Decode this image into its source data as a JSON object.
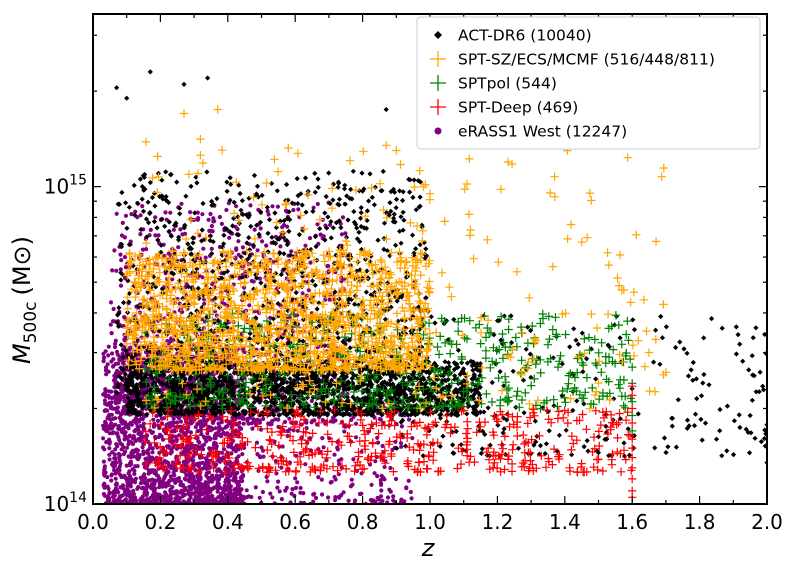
{
  "chart_data": {
    "type": "scatter",
    "xlabel": "z",
    "ylabel_main": "M",
    "ylabel_sub": "500c",
    "ylabel_unit": "(M⊙)",
    "xlim": [
      0.0,
      2.0
    ],
    "ylim": [
      100000000000000.0,
      3500000000000000.0
    ],
    "yscale": "log",
    "legend_position": "top-right",
    "x_ticks": [
      {
        "value": 0.0,
        "label": "0.0"
      },
      {
        "value": 0.2,
        "label": "0.2"
      },
      {
        "value": 0.4,
        "label": "0.4"
      },
      {
        "value": 0.6,
        "label": "0.6"
      },
      {
        "value": 0.8,
        "label": "0.8"
      },
      {
        "value": 1.0,
        "label": "1.0"
      },
      {
        "value": 1.2,
        "label": "1.2"
      },
      {
        "value": 1.4,
        "label": "1.4"
      },
      {
        "value": 1.6,
        "label": "1.6"
      },
      {
        "value": 1.8,
        "label": "1.8"
      },
      {
        "value": 2.0,
        "label": "2.0"
      }
    ],
    "y_ticks": [
      {
        "value": 100000000000000.0,
        "base": "10",
        "exp": "14"
      },
      {
        "value": 1000000000000000.0,
        "base": "10",
        "exp": "15"
      }
    ],
    "series": [
      {
        "name": "eRASS1 West (12247)",
        "marker": "circle",
        "color": "#800080",
        "clusters": [
          {
            "zmin": 0.03,
            "zmax": 0.45,
            "logmmin": 14.0,
            "logmmax": 14.5,
            "n": 1800
          },
          {
            "zmin": 0.05,
            "zmax": 0.75,
            "logmmin": 14.25,
            "logmmax": 14.95,
            "n": 900
          },
          {
            "zmin": 0.3,
            "zmax": 0.95,
            "logmmin": 14.0,
            "logmmax": 14.35,
            "n": 300
          }
        ]
      },
      {
        "name": "ACT-DR6 (10040)",
        "marker": "diamond",
        "color": "#000000",
        "clusters": [
          {
            "zmin": 0.1,
            "zmax": 1.15,
            "logmmin": 14.28,
            "logmmax": 14.45,
            "n": 1600
          },
          {
            "zmin": 0.07,
            "zmax": 1.0,
            "logmmin": 14.35,
            "logmmax": 15.05,
            "n": 1000
          },
          {
            "zmin": 0.9,
            "zmax": 2.0,
            "logmmin": 14.15,
            "logmmax": 14.6,
            "n": 260
          }
        ],
        "extra_points": [
          {
            "z": 0.07,
            "m": 2050000000000000.0
          },
          {
            "z": 0.1,
            "m": 1900000000000000.0
          },
          {
            "z": 0.17,
            "m": 2300000000000000.0
          },
          {
            "z": 0.27,
            "m": 2100000000000000.0
          },
          {
            "z": 0.34,
            "m": 2200000000000000.0
          },
          {
            "z": 0.87,
            "m": 1750000000000000.0
          },
          {
            "z": 1.85,
            "m": 160000000000000.0
          },
          {
            "z": 1.95,
            "m": 190000000000000.0
          },
          {
            "z": 2.0,
            "m": 135000000000000.0
          }
        ]
      },
      {
        "name": "SPTpol (544)",
        "marker": "plus",
        "color": "#008000",
        "clusters": [
          {
            "zmin": 0.15,
            "zmax": 1.6,
            "logmmin": 14.3,
            "logmmax": 14.6,
            "n": 544
          }
        ],
        "extra_points": [
          {
            "z": 1.6,
            "m": 270000000000000.0
          },
          {
            "z": 1.6,
            "m": 240000000000000.0
          },
          {
            "z": 1.6,
            "m": 210000000000000.0
          },
          {
            "z": 1.6,
            "m": 190000000000000.0
          },
          {
            "z": 1.6,
            "m": 170000000000000.0
          }
        ]
      },
      {
        "name": "SPT-SZ/ECS/MCMF (516/448/811)",
        "marker": "plus",
        "color": "#FFA500",
        "clusters": [
          {
            "zmin": 0.1,
            "zmax": 1.0,
            "logmmin": 14.42,
            "logmmax": 14.8,
            "n": 1300
          },
          {
            "zmin": 0.15,
            "zmax": 1.7,
            "logmmin": 14.3,
            "logmmax": 15.15,
            "n": 250
          }
        ],
        "extra_points": [
          {
            "z": 0.27,
            "m": 1700000000000000.0
          },
          {
            "z": 0.37,
            "m": 1750000000000000.0
          },
          {
            "z": 0.87,
            "m": 1350000000000000.0
          },
          {
            "z": 0.9,
            "m": 1300000000000000.0
          },
          {
            "z": 0.98,
            "m": 1000000000000000.0
          },
          {
            "z": 1.0,
            "m": 950000000000000.0
          },
          {
            "z": 1.12,
            "m": 730000000000000.0
          },
          {
            "z": 1.17,
            "m": 680000000000000.0
          },
          {
            "z": 1.67,
            "m": 330000000000000.0
          },
          {
            "z": 1.7,
            "m": 260000000000000.0
          },
          {
            "z": 1.57,
            "m": 280000000000000.0
          }
        ]
      },
      {
        "name": "SPT-Deep (469)",
        "marker": "plus",
        "color": "#FF0000",
        "clusters": [
          {
            "zmin": 0.15,
            "zmax": 1.6,
            "logmmin": 14.1,
            "logmmax": 14.3,
            "n": 440
          }
        ],
        "extra_points": [
          {
            "z": 1.6,
            "m": 235000000000000.0
          },
          {
            "z": 1.6,
            "m": 220000000000000.0
          },
          {
            "z": 1.6,
            "m": 200000000000000.0
          },
          {
            "z": 1.6,
            "m": 180000000000000.0
          },
          {
            "z": 1.6,
            "m": 160000000000000.0
          },
          {
            "z": 1.6,
            "m": 150000000000000.0
          },
          {
            "z": 1.6,
            "m": 140000000000000.0
          },
          {
            "z": 1.6,
            "m": 130000000000000.0
          },
          {
            "z": 1.6,
            "m": 120000000000000.0
          },
          {
            "z": 1.6,
            "m": 110000000000000.0
          },
          {
            "z": 1.6,
            "m": 105000000000000.0
          },
          {
            "z": 1.6,
            "m": 100000000000000.0
          }
        ]
      }
    ],
    "draw_order": [
      "eRASS1 West (12247)",
      "ACT-DR6 (10040)",
      "SPTpol (544)",
      "SPT-SZ/ECS/MCMF (516/448/811)",
      "SPT-Deep (469)"
    ],
    "legend": [
      {
        "label": "ACT-DR6 (10040)",
        "marker": "diamond",
        "color": "#000000"
      },
      {
        "label": "SPT-SZ/ECS/MCMF (516/448/811)",
        "marker": "plus",
        "color": "#FFA500"
      },
      {
        "label": "SPTpol (544)",
        "marker": "plus",
        "color": "#008000"
      },
      {
        "label": "SPT-Deep (469)",
        "marker": "plus",
        "color": "#FF0000"
      },
      {
        "label": "eRASS1 West (12247)",
        "marker": "circle",
        "color": "#800080"
      }
    ]
  }
}
